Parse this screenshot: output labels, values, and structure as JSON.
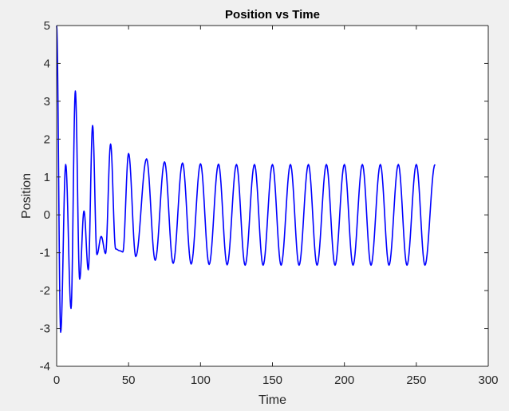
{
  "figure": {
    "background": "#f0f0f0",
    "axes_background": "#ffffff",
    "axis_color": "#262626"
  },
  "chart_data": {
    "type": "line",
    "title": "Position vs Time",
    "xlabel": "Time",
    "ylabel": "Position",
    "xlim": [
      0,
      300
    ],
    "ylim": [
      -4,
      5
    ],
    "xticks": [
      0,
      50,
      100,
      150,
      200,
      250,
      300
    ],
    "yticks": [
      -4,
      -3,
      -2,
      -1,
      0,
      1,
      2,
      3,
      4,
      5
    ],
    "grid": false,
    "legend": "none",
    "series": [
      {
        "color": "#0000ff",
        "x": [
          0,
          2.8,
          6.3,
          10.0,
          13.0,
          16.0,
          19.0,
          22.0,
          25.0,
          28.0,
          31.0,
          34.0,
          37.5,
          41.0,
          44.0,
          46.0,
          50.0,
          55.0,
          62.5,
          68.5,
          75.0,
          81.0,
          87.5,
          93.5,
          100.0,
          106.0,
          112.5,
          118.5,
          125.0,
          131.0,
          137.5,
          143.5,
          150.0,
          156.0,
          162.5,
          168.5,
          175.0,
          181.0,
          187.5,
          193.5,
          200.0,
          206.0,
          212.5,
          218.5,
          225.0,
          231.0,
          237.5,
          243.5,
          250.0,
          256.0,
          263.0
        ],
        "y": [
          5.0,
          -3.1,
          1.33,
          -2.47,
          3.27,
          -1.7,
          0.1,
          -1.45,
          2.36,
          -1.05,
          -0.57,
          -1.02,
          1.87,
          -0.9,
          -0.95,
          -0.98,
          1.62,
          -1.1,
          1.48,
          -1.2,
          1.4,
          -1.28,
          1.37,
          -1.3,
          1.35,
          -1.31,
          1.34,
          -1.32,
          1.33,
          -1.33,
          1.33,
          -1.33,
          1.33,
          -1.33,
          1.33,
          -1.33,
          1.33,
          -1.33,
          1.33,
          -1.33,
          1.33,
          -1.33,
          1.33,
          -1.33,
          1.33,
          -1.33,
          1.33,
          -1.33,
          1.33,
          -1.33,
          1.33
        ]
      }
    ]
  }
}
